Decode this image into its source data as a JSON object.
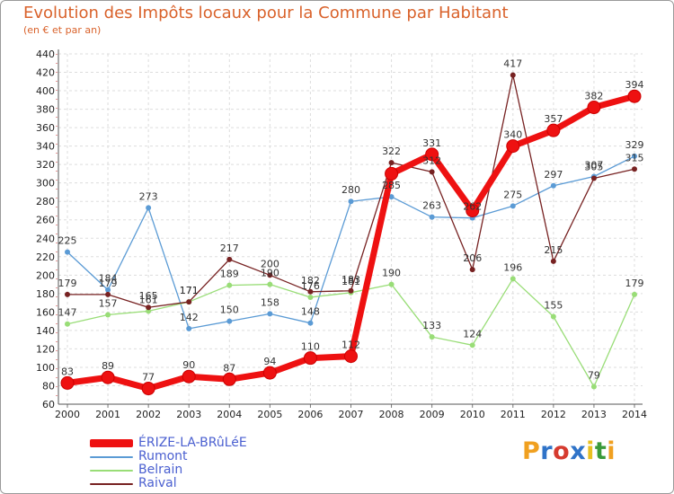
{
  "title": "Evolution des Impôts locaux pour la Commune par Habitant",
  "subtitle": "(en € et par an)",
  "logo": {
    "text": "Proxiti",
    "colors": [
      "#f0a020",
      "#2f73c8",
      "#d63b2f",
      "#2f73c8",
      "#e8c020",
      "#3a9a3a",
      "#f0a020"
    ]
  },
  "chart_data": {
    "type": "line",
    "x": [
      "2000",
      "2001",
      "2002",
      "2003",
      "2004",
      "2005",
      "2006",
      "2007",
      "2008",
      "2009",
      "2010",
      "2011",
      "2012",
      "2013",
      "2014"
    ],
    "ylim": [
      60,
      440
    ],
    "yticks": [
      60,
      80,
      100,
      120,
      140,
      160,
      180,
      200,
      220,
      240,
      260,
      280,
      300,
      320,
      340,
      360,
      380,
      400,
      420,
      440
    ],
    "grid": true,
    "series": [
      {
        "name": "ÉRIZE-LA-BRûLéE",
        "color": "#ee1111",
        "values": [
          83,
          89,
          77,
          90,
          87,
          94,
          110,
          112,
          310,
          331,
          270,
          340,
          357,
          382,
          394
        ],
        "labels": [
          "83",
          "89",
          "77",
          "90",
          "87",
          "94",
          "110",
          "112",
          "",
          "331",
          "",
          "340",
          "357",
          "382",
          "394"
        ]
      },
      {
        "name": "Rumont",
        "color": "#5b9bd5",
        "values": [
          225,
          184,
          273,
          142,
          150,
          158,
          148,
          280,
          285,
          263,
          262,
          275,
          297,
          307,
          329
        ],
        "labels": [
          "225",
          "184",
          "273",
          "142",
          "150",
          "158",
          "148",
          "280",
          "285",
          "263",
          "262",
          "275",
          "297",
          "307",
          "329"
        ]
      },
      {
        "name": "Belrain",
        "color": "#99dd77",
        "values": [
          147,
          157,
          161,
          171,
          189,
          190,
          176,
          181,
          190,
          133,
          124,
          196,
          155,
          79,
          179
        ],
        "labels": [
          "147",
          "157",
          "161",
          "171",
          "189",
          "190",
          "176",
          "181",
          "190",
          "133",
          "124",
          "196",
          "155",
          "79",
          "179"
        ]
      },
      {
        "name": "Raival",
        "color": "#772222",
        "values": [
          179,
          179,
          165,
          171,
          217,
          200,
          182,
          183,
          322,
          312,
          206,
          417,
          215,
          305,
          315
        ],
        "labels": [
          "179",
          "179",
          "165",
          "171",
          "217",
          "200",
          "182",
          "183",
          "322",
          "312",
          "206",
          "417",
          "215",
          "305",
          "315"
        ]
      }
    ]
  },
  "legend": [
    {
      "label": "ÉRIZE-LA-BRûLéE",
      "color": "#ee1111"
    },
    {
      "label": "Rumont",
      "color": "#5b9bd5"
    },
    {
      "label": "Belrain",
      "color": "#99dd77"
    },
    {
      "label": "Raival",
      "color": "#772222"
    }
  ]
}
